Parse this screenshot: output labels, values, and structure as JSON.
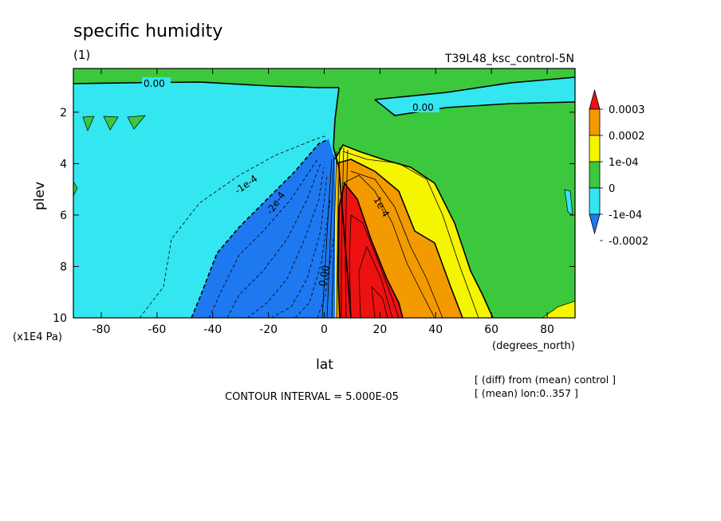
{
  "header": {
    "title": "specific humidity",
    "panel": "(1)",
    "run": "T39L48_ksc_control-5N"
  },
  "notes": {
    "diff": "[ (diff) from (mean) control ]",
    "mean": "[ (mean) lon:0..357 ]",
    "interval": "CONTOUR INTERVAL = 5.000E-05"
  },
  "chart_data": {
    "type": "heatmap",
    "title": "specific humidity",
    "xlabel": "lat",
    "xunits": "(degrees_north)",
    "ylabel": "plev",
    "yunits": "(x1E4 Pa)",
    "xlim": [
      -90,
      90
    ],
    "ylim": [
      10,
      0.3
    ],
    "xticks": [
      -80,
      -60,
      -40,
      -20,
      0,
      20,
      40,
      60,
      80
    ],
    "yticks": [
      2,
      4,
      6,
      8,
      10
    ],
    "contour_labels": [
      "0.00",
      "0.00",
      "-1e-4",
      "-2e-4",
      "0.00",
      "1e-4"
    ],
    "colorbar": {
      "labels": [
        "0.0003",
        "0.0002",
        "1e-04",
        "0",
        "-1e-04",
        "-0.0002"
      ],
      "colors": [
        "#ee1111",
        "#f39a00",
        "#f5f500",
        "#3cc83c",
        "#33e6f0",
        "#1e78f0"
      ],
      "extend": "both"
    },
    "colors": {
      "c_minus_0002": "#1e78f0",
      "c_minus_0001": "#33e6f0",
      "c_zero": "#3cc83c",
      "c_plus_0001": "#f5f500",
      "c_plus_0002": "#f39a00",
      "c_plus_0003": "#ee1111"
    }
  }
}
